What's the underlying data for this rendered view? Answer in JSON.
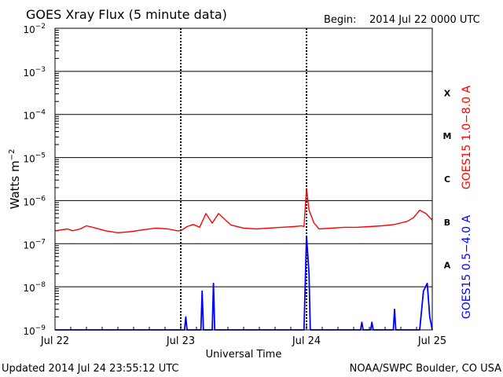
{
  "header": {
    "title": "GOES Xray Flux (5 minute data)",
    "begin_label": "Begin:",
    "begin_value": "2014 Jul 22 0000 UTC"
  },
  "footer": {
    "updated": "Updated 2014 Jul 24 23:55:12 UTC",
    "credit": "NOAA/SWPC Boulder, CO USA"
  },
  "chart_data": {
    "type": "line",
    "title": "GOES Xray Flux (5 minute data)",
    "xlabel": "Universal Time",
    "ylabel_base": "Watts m",
    "ylabel_exp": "−2",
    "yscale": "log",
    "ylim": [
      1e-09,
      0.01
    ],
    "xlim_days": [
      0,
      3
    ],
    "grid": true,
    "x_ticks": [
      {
        "day": 0,
        "label": "Jul 22"
      },
      {
        "day": 1,
        "label": "Jul 23"
      },
      {
        "day": 2,
        "label": "Jul 24"
      },
      {
        "day": 3,
        "label": "Jul 25"
      }
    ],
    "y_ticks": [
      {
        "exp": -2,
        "base": "10",
        "sup": "−2"
      },
      {
        "exp": -3,
        "base": "10",
        "sup": "−3"
      },
      {
        "exp": -4,
        "base": "10",
        "sup": "−4"
      },
      {
        "exp": -5,
        "base": "10",
        "sup": "−5"
      },
      {
        "exp": -6,
        "base": "10",
        "sup": "−6"
      },
      {
        "exp": -7,
        "base": "10",
        "sup": "−7"
      },
      {
        "exp": -8,
        "base": "10",
        "sup": "−8"
      },
      {
        "exp": -9,
        "base": "10",
        "sup": "−9"
      }
    ],
    "flare_classes": [
      {
        "label": "X",
        "exp": -3.5
      },
      {
        "label": "M",
        "exp": -4.5
      },
      {
        "label": "C",
        "exp": -5.5
      },
      {
        "label": "B",
        "exp": -6.5
      },
      {
        "label": "A",
        "exp": -7.5
      }
    ],
    "series": [
      {
        "name": "GOES15 1.0−8.0 A",
        "color": "#ff0000",
        "points": [
          [
            0.0,
            2e-07
          ],
          [
            0.1,
            2.2e-07
          ],
          [
            0.14,
            2e-07
          ],
          [
            0.2,
            2.2e-07
          ],
          [
            0.25,
            2.6e-07
          ],
          [
            0.3,
            2.4e-07
          ],
          [
            0.4,
            2e-07
          ],
          [
            0.5,
            1.8e-07
          ],
          [
            0.6,
            1.9e-07
          ],
          [
            0.7,
            2.1e-07
          ],
          [
            0.8,
            2.3e-07
          ],
          [
            0.9,
            2.2e-07
          ],
          [
            0.97,
            2e-07
          ],
          [
            1.0,
            2e-07
          ],
          [
            1.05,
            2.5e-07
          ],
          [
            1.1,
            2.8e-07
          ],
          [
            1.15,
            2.4e-07
          ],
          [
            1.2,
            5e-07
          ],
          [
            1.25,
            3e-07
          ],
          [
            1.3,
            5e-07
          ],
          [
            1.4,
            2.7e-07
          ],
          [
            1.5,
            2.3e-07
          ],
          [
            1.6,
            2.2e-07
          ],
          [
            1.7,
            2.3e-07
          ],
          [
            1.8,
            2.4e-07
          ],
          [
            1.9,
            2.5e-07
          ],
          [
            1.96,
            2.6e-07
          ],
          [
            1.98,
            2.5e-07
          ],
          [
            2.0,
            1.9e-06
          ],
          [
            2.02,
            6e-07
          ],
          [
            2.06,
            3e-07
          ],
          [
            2.1,
            2.2e-07
          ],
          [
            2.2,
            2.3e-07
          ],
          [
            2.3,
            2.4e-07
          ],
          [
            2.4,
            2.4e-07
          ],
          [
            2.5,
            2.5e-07
          ],
          [
            2.6,
            2.6e-07
          ],
          [
            2.7,
            2.8e-07
          ],
          [
            2.8,
            3.3e-07
          ],
          [
            2.85,
            4e-07
          ],
          [
            2.9,
            6e-07
          ],
          [
            2.95,
            5e-07
          ],
          [
            3.0,
            3.5e-07
          ]
        ]
      },
      {
        "name": "GOES15 0.5−4.0 A",
        "color": "#0000ff",
        "points": [
          [
            0.0,
            1e-09
          ],
          [
            1.0,
            1e-09
          ],
          [
            1.03,
            1e-09
          ],
          [
            1.04,
            2e-09
          ],
          [
            1.05,
            1e-09
          ],
          [
            1.16,
            1e-09
          ],
          [
            1.17,
            8e-09
          ],
          [
            1.18,
            1e-09
          ],
          [
            1.25,
            1e-09
          ],
          [
            1.26,
            1.2e-08
          ],
          [
            1.27,
            1e-09
          ],
          [
            1.98,
            1e-09
          ],
          [
            2.0,
            1.5e-07
          ],
          [
            2.02,
            2e-08
          ],
          [
            2.03,
            1e-09
          ],
          [
            2.43,
            1e-09
          ],
          [
            2.44,
            1.5e-09
          ],
          [
            2.45,
            1e-09
          ],
          [
            2.51,
            1e-09
          ],
          [
            2.52,
            1.5e-09
          ],
          [
            2.53,
            1e-09
          ],
          [
            2.69,
            1e-09
          ],
          [
            2.7,
            3e-09
          ],
          [
            2.71,
            1e-09
          ],
          [
            2.9,
            1e-09
          ],
          [
            2.93,
            8e-09
          ],
          [
            2.96,
            1.2e-08
          ],
          [
            2.98,
            2e-09
          ],
          [
            3.0,
            1e-09
          ]
        ]
      }
    ]
  }
}
